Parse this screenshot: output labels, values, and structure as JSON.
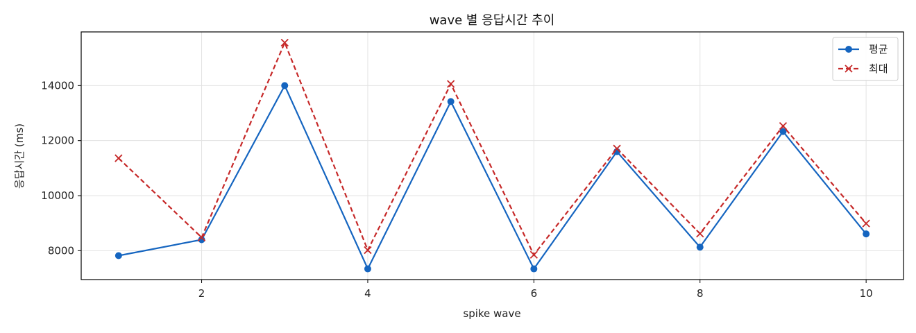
{
  "chart_data": {
    "type": "line",
    "title": "wave 별 응답시간 추이",
    "xlabel": "spike wave",
    "ylabel": "응답시간 (ms)",
    "x": [
      1,
      2,
      3,
      4,
      5,
      6,
      7,
      8,
      9,
      10
    ],
    "xlim": [
      0.55,
      10.45
    ],
    "ylim": [
      6950,
      15950
    ],
    "xticks": [
      2,
      4,
      6,
      8,
      10
    ],
    "yticks": [
      8000,
      10000,
      12000,
      14000
    ],
    "grid": true,
    "legend_position": "top-right",
    "series": [
      {
        "name": "평균",
        "values": [
          7820,
          8400,
          14000,
          7340,
          13420,
          7340,
          11600,
          8130,
          12330,
          8610
        ],
        "color": "#1565c0",
        "line_style": "solid",
        "marker": "circle"
      },
      {
        "name": "최대",
        "values": [
          11360,
          8480,
          15560,
          8020,
          14060,
          7850,
          11710,
          8620,
          12530,
          8990
        ],
        "color": "#c62828",
        "line_style": "dashed",
        "marker": "x"
      }
    ]
  }
}
